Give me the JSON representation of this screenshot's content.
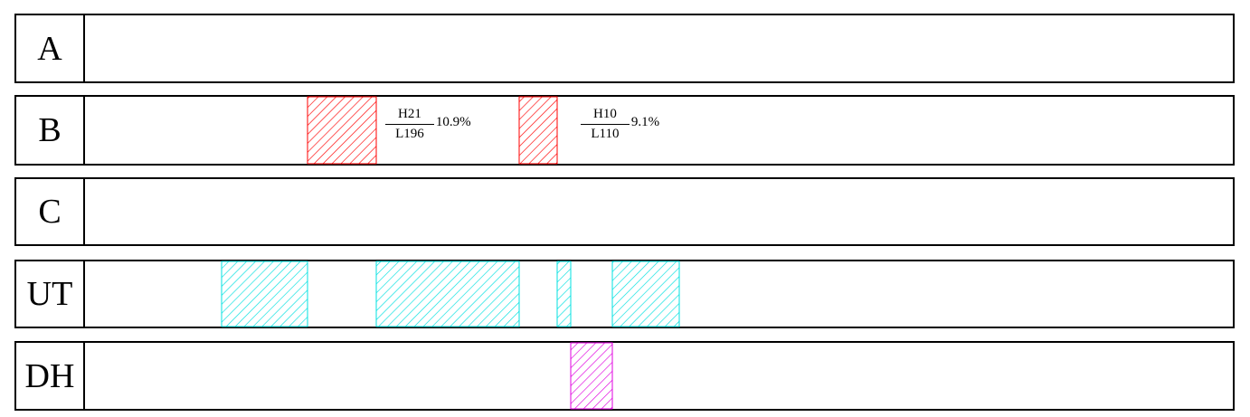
{
  "tracks": [
    {
      "label": "A",
      "regions": []
    },
    {
      "label": "B",
      "regions": [
        {
          "start": 322,
          "end": 398,
          "color": "#ff0000"
        },
        {
          "start": 556,
          "end": 598,
          "color": "#ff0000"
        }
      ]
    },
    {
      "label": "C",
      "regions": []
    },
    {
      "label": "UT",
      "regions": [
        {
          "start": 227,
          "end": 322,
          "color": "#00e0e0"
        },
        {
          "start": 398,
          "end": 556,
          "color": "#00e0e0"
        },
        {
          "start": 598,
          "end": 613,
          "color": "#00e0e0"
        },
        {
          "start": 659,
          "end": 733,
          "color": "#00e0e0"
        }
      ]
    },
    {
      "label": "DH",
      "regions": [
        {
          "start": 613,
          "end": 659,
          "color": "#e000e0"
        }
      ]
    }
  ],
  "annotations": [
    {
      "numerator": "H21",
      "denominator": "L196",
      "percent": "10.9%"
    },
    {
      "numerator": "H10",
      "denominator": "L110",
      "percent": "9.1%"
    }
  ]
}
